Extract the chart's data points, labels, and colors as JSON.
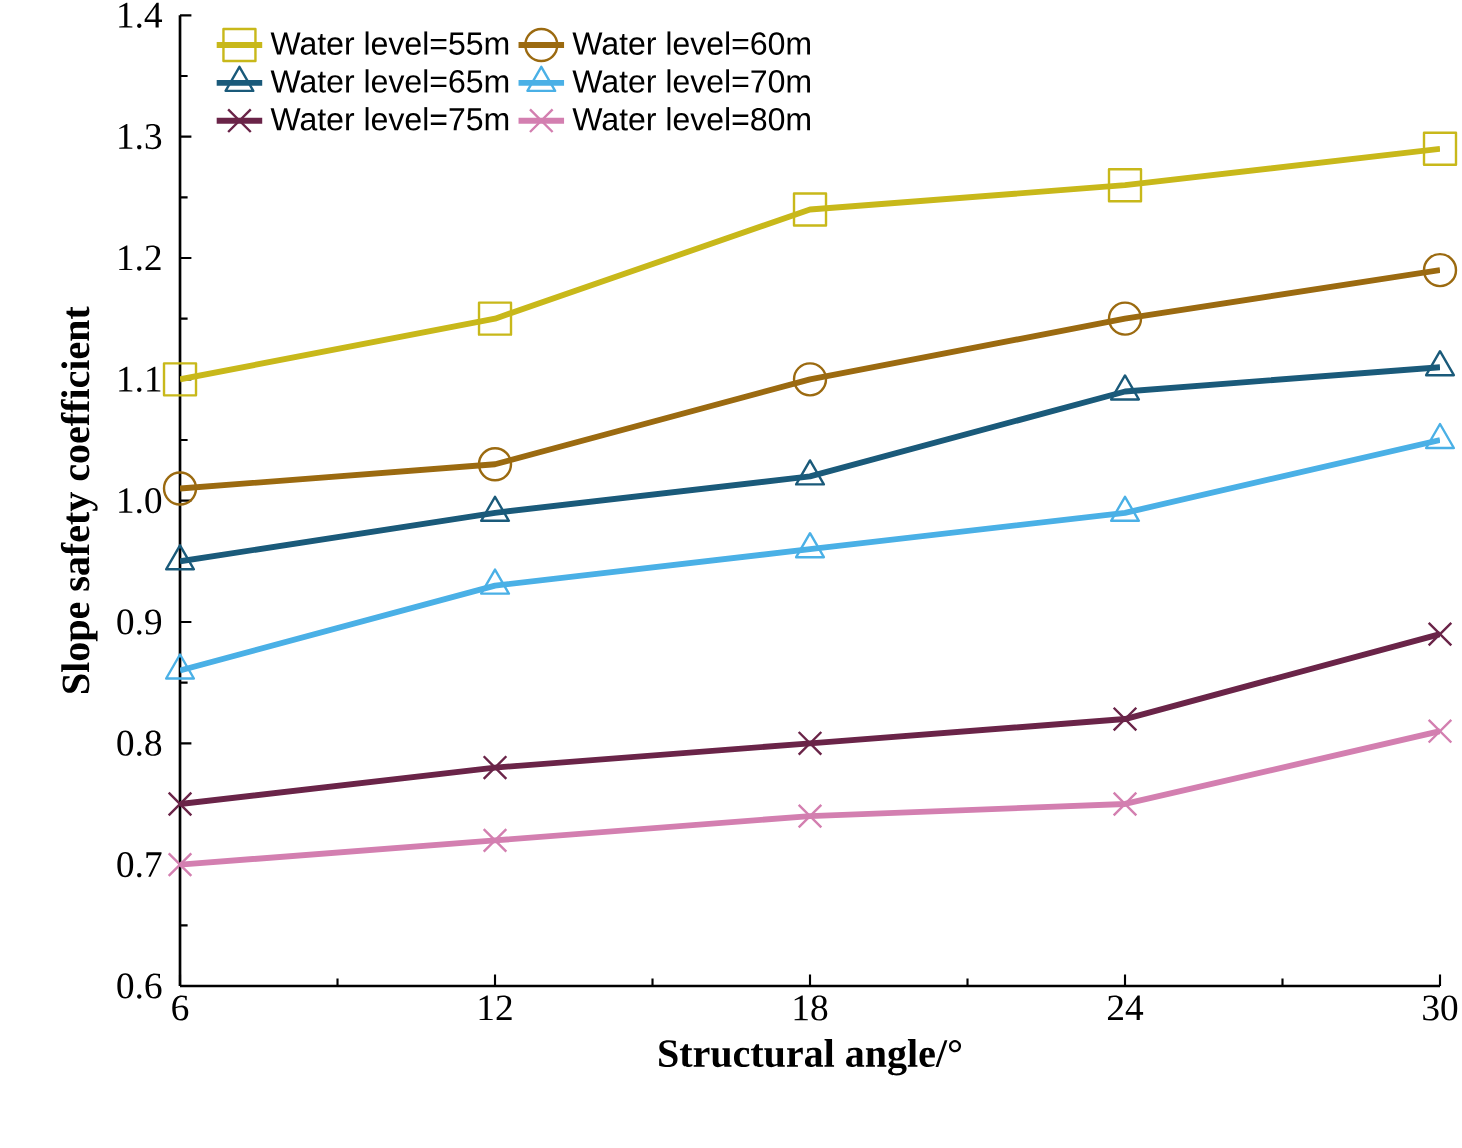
{
  "chart_data": {
    "type": "line",
    "xlabel": "Structural angle/°",
    "ylabel": "Slope safety coefficient",
    "x": [
      6,
      12,
      18,
      24,
      30
    ],
    "xlim": [
      6,
      30
    ],
    "xticks": [
      6,
      12,
      18,
      24,
      30
    ],
    "ylim": [
      0.6,
      1.4
    ],
    "yticks": [
      {
        "value": 0.6,
        "label": "0.6"
      },
      {
        "value": 0.7,
        "label": "0.7"
      },
      {
        "value": 0.8,
        "label": "0.8"
      },
      {
        "value": 0.9,
        "label": "0.9"
      },
      {
        "value": 1.0,
        "label": "1.0"
      },
      {
        "value": 1.1,
        "label": "1.1"
      },
      {
        "value": 1.2,
        "label": "1.2"
      },
      {
        "value": 1.3,
        "label": "1.3"
      },
      {
        "value": 1.4,
        "label": "1.4"
      }
    ],
    "legend": "top left",
    "grid": false,
    "line_style": "solid",
    "series": [
      {
        "name": "Water level=55m",
        "color": "#c8b81a",
        "marker": "square",
        "values": [
          1.1,
          1.15,
          1.24,
          1.26,
          1.29
        ]
      },
      {
        "name": "Water level=60m",
        "color": "#9b6a10",
        "marker": "circle",
        "values": [
          1.01,
          1.03,
          1.1,
          1.15,
          1.19
        ]
      },
      {
        "name": "Water level=65m",
        "color": "#1a5a7a",
        "marker": "triangle",
        "values": [
          0.95,
          0.99,
          1.02,
          1.09,
          1.11
        ]
      },
      {
        "name": "Water level=70m",
        "color": "#4ab0e6",
        "marker": "triangle",
        "values": [
          0.86,
          0.93,
          0.96,
          0.99,
          1.05
        ]
      },
      {
        "name": "Water level=75m",
        "color": "#6a2448",
        "marker": "cross",
        "values": [
          0.75,
          0.78,
          0.8,
          0.82,
          0.89
        ]
      },
      {
        "name": "Water level=80m",
        "color": "#d37fb0",
        "marker": "cross",
        "values": [
          0.7,
          0.72,
          0.74,
          0.75,
          0.81
        ]
      }
    ]
  }
}
